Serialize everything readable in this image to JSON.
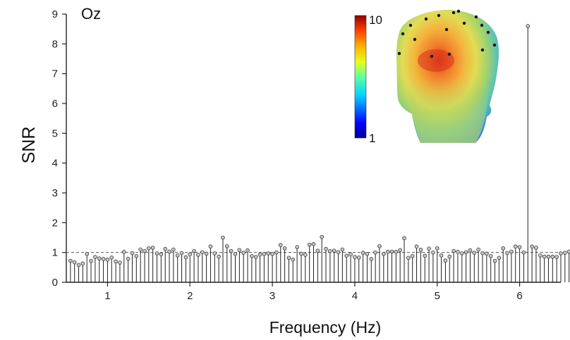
{
  "chart_data": {
    "type": "stem",
    "title": "Oz",
    "xlabel": "Frequency (Hz)",
    "ylabel": "SNR",
    "xlim": [
      0.5,
      6.5
    ],
    "ylim": [
      0,
      9
    ],
    "x_ticks": [
      "1",
      "2",
      "3",
      "4",
      "5",
      "6"
    ],
    "y_ticks": [
      "0",
      "1",
      "2",
      "3",
      "4",
      "5",
      "6",
      "7",
      "8",
      "9"
    ],
    "reference_line": 1,
    "grid": false,
    "frequency_step": 0.05,
    "series": [
      {
        "x_start": 0.55,
        "values": [
          0.72,
          0.67,
          0.58,
          0.63,
          0.95,
          0.71,
          0.85,
          0.8,
          0.78,
          0.76,
          0.83,
          0.7,
          0.66,
          1.02,
          0.79,
          0.98,
          0.88,
          1.1,
          1.05,
          1.14,
          1.16,
          0.97,
          0.94,
          1.12,
          1.03,
          1.1,
          0.9,
          0.98,
          0.84,
          0.94,
          1.05,
          0.92,
          1.01,
          0.96,
          1.2,
          0.97,
          0.86,
          1.5,
          1.21,
          1.05,
          0.95,
          1.08,
          0.99,
          1.07,
          0.88,
          0.85,
          0.93,
          0.95,
          0.97,
          0.95,
          1.0,
          1.25,
          1.14,
          0.82,
          0.76,
          1.18,
          0.96,
          0.92,
          1.26,
          1.28,
          1.06,
          1.52,
          1.12,
          1.05,
          1.06,
          1.01,
          1.1,
          0.89,
          0.94,
          0.85,
          0.83,
          0.99,
          0.95,
          0.78,
          1.0,
          1.21,
          0.95,
          1.02,
          1.03,
          1.02,
          1.08,
          1.48,
          0.82,
          0.88,
          1.2,
          1.09,
          0.89,
          1.13,
          1.0,
          1.14,
          0.9,
          0.73,
          0.86,
          1.05,
          1.02,
          0.97,
          1.01,
          1.07,
          0.99,
          1.1,
          0.98,
          0.96,
          0.88,
          0.72,
          0.82,
          1.14,
          0.98,
          1.03,
          1.2,
          1.18,
          1.0,
          8.6,
          1.2,
          1.16,
          0.9,
          0.86,
          0.86,
          0.86,
          0.85,
          0.97,
          0.99,
          1.03
        ]
      }
    ],
    "colorbar": {
      "max_label": "10",
      "min_label": "1",
      "colormap": "jet"
    }
  },
  "topography": {
    "colors": {
      "dark_red": "#b2181b",
      "red": "#e8411e",
      "orange": "#f79a2c",
      "yellow": "#e8d84a",
      "green": "#8cc96a",
      "cyan": "#3fb8c9",
      "blue": "#2d62d6"
    },
    "electrode_count": 17
  },
  "colors": {
    "stem": "#222222",
    "marker_fill": "#c8c8c8",
    "reference_line": "#555555",
    "axis": "#222222"
  }
}
